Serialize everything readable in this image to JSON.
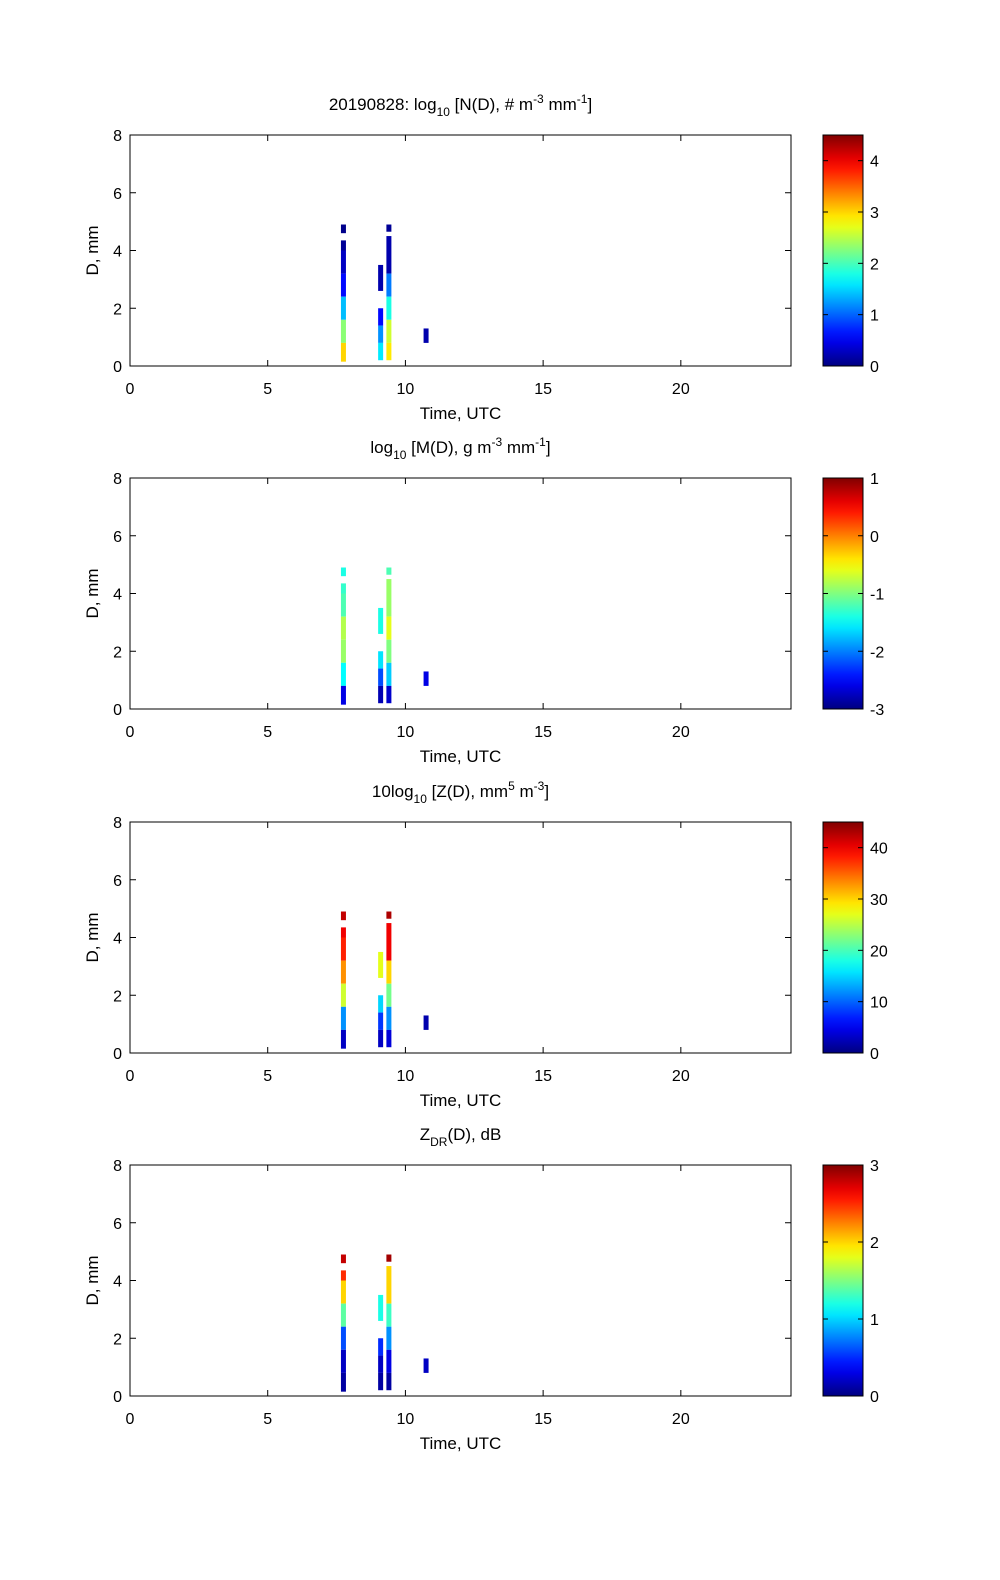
{
  "chart_data": [
    {
      "type": "heatmap",
      "title_parts": {
        "pre": "20190828: log",
        "sub": "10",
        "mid": " [N(D), # m",
        "sup1": "-3",
        "mid2": " mm",
        "sup2": "-1",
        "post": "]"
      },
      "xlabel": "Time, UTC",
      "ylabel": "D, mm",
      "xlim": [
        0,
        24
      ],
      "ylim": [
        0,
        8
      ],
      "xticks": [
        0,
        5,
        10,
        15,
        20
      ],
      "yticks": [
        0,
        2,
        4,
        6,
        8
      ],
      "colorbar": {
        "range": [
          0,
          4.5
        ],
        "ticks": [
          0,
          1,
          2,
          3,
          4
        ]
      },
      "cells": [
        {
          "t": 7.75,
          "d0": 4.6,
          "d1": 4.9,
          "v": 0.05
        },
        {
          "t": 7.75,
          "d0": 4.0,
          "d1": 4.35,
          "v": 0.1
        },
        {
          "t": 7.75,
          "d0": 3.2,
          "d1": 4.0,
          "v": 0.3
        },
        {
          "t": 7.75,
          "d0": 2.4,
          "d1": 3.2,
          "v": 0.6
        },
        {
          "t": 7.75,
          "d0": 1.6,
          "d1": 2.4,
          "v": 1.4
        },
        {
          "t": 7.75,
          "d0": 0.8,
          "d1": 1.6,
          "v": 2.3
        },
        {
          "t": 7.75,
          "d0": 0.15,
          "d1": 0.8,
          "v": 3.0
        },
        {
          "t": 9.1,
          "d0": 2.6,
          "d1": 3.5,
          "v": 0.2
        },
        {
          "t": 9.1,
          "d0": 1.4,
          "d1": 2.0,
          "v": 0.6
        },
        {
          "t": 9.1,
          "d0": 0.8,
          "d1": 1.4,
          "v": 1.2
        },
        {
          "t": 9.1,
          "d0": 0.2,
          "d1": 0.8,
          "v": 1.6
        },
        {
          "t": 9.4,
          "d0": 4.65,
          "d1": 4.9,
          "v": 0.1
        },
        {
          "t": 9.4,
          "d0": 3.2,
          "d1": 4.5,
          "v": 0.2
        },
        {
          "t": 9.4,
          "d0": 2.4,
          "d1": 3.2,
          "v": 1.1
        },
        {
          "t": 9.4,
          "d0": 1.6,
          "d1": 2.4,
          "v": 1.8
        },
        {
          "t": 9.4,
          "d0": 0.8,
          "d1": 1.6,
          "v": 2.6
        },
        {
          "t": 9.4,
          "d0": 0.2,
          "d1": 0.8,
          "v": 2.9
        },
        {
          "t": 10.75,
          "d0": 0.8,
          "d1": 1.3,
          "v": 0.2
        }
      ]
    },
    {
      "type": "heatmap",
      "title_parts": {
        "pre": "log",
        "sub": "10",
        "mid": " [M(D), g m",
        "sup1": "-3",
        "mid2": " mm",
        "sup2": "-1",
        "post": "]"
      },
      "xlabel": "Time, UTC",
      "ylabel": "D, mm",
      "xlim": [
        0,
        24
      ],
      "ylim": [
        0,
        8
      ],
      "xticks": [
        0,
        5,
        10,
        15,
        20
      ],
      "yticks": [
        0,
        2,
        4,
        6,
        8
      ],
      "colorbar": {
        "range": [
          -3,
          1
        ],
        "ticks": [
          -3,
          -2,
          -1,
          0,
          1
        ]
      },
      "cells": [
        {
          "t": 7.75,
          "d0": 4.6,
          "d1": 4.9,
          "v": -1.4
        },
        {
          "t": 7.75,
          "d0": 4.0,
          "d1": 4.35,
          "v": -1.3
        },
        {
          "t": 7.75,
          "d0": 3.2,
          "d1": 4.0,
          "v": -1.2
        },
        {
          "t": 7.75,
          "d0": 2.4,
          "d1": 3.2,
          "v": -0.8
        },
        {
          "t": 7.75,
          "d0": 1.6,
          "d1": 2.4,
          "v": -0.9
        },
        {
          "t": 7.75,
          "d0": 0.8,
          "d1": 1.6,
          "v": -1.5
        },
        {
          "t": 7.75,
          "d0": 0.15,
          "d1": 0.8,
          "v": -2.6
        },
        {
          "t": 9.1,
          "d0": 2.6,
          "d1": 3.5,
          "v": -1.4
        },
        {
          "t": 9.1,
          "d0": 1.4,
          "d1": 2.0,
          "v": -1.6
        },
        {
          "t": 9.1,
          "d0": 0.8,
          "d1": 1.4,
          "v": -2.2
        },
        {
          "t": 9.1,
          "d0": 0.2,
          "d1": 0.8,
          "v": -2.8
        },
        {
          "t": 9.4,
          "d0": 4.65,
          "d1": 4.9,
          "v": -1.2
        },
        {
          "t": 9.4,
          "d0": 3.2,
          "d1": 4.5,
          "v": -0.9
        },
        {
          "t": 9.4,
          "d0": 2.4,
          "d1": 3.2,
          "v": -0.6
        },
        {
          "t": 9.4,
          "d0": 1.6,
          "d1": 2.4,
          "v": -1.0
        },
        {
          "t": 9.4,
          "d0": 0.8,
          "d1": 1.6,
          "v": -1.7
        },
        {
          "t": 9.4,
          "d0": 0.2,
          "d1": 0.8,
          "v": -2.7
        },
        {
          "t": 10.75,
          "d0": 0.8,
          "d1": 1.3,
          "v": -2.6
        }
      ]
    },
    {
      "type": "heatmap",
      "title_parts": {
        "pre": "10log",
        "sub": "10",
        "mid": " [Z(D),  mm",
        "sup1": "5",
        "mid2": " m",
        "sup2": "-3",
        "post": "]"
      },
      "xlabel": "Time, UTC",
      "ylabel": "D, mm",
      "xlim": [
        0,
        24
      ],
      "ylim": [
        0,
        8
      ],
      "xticks": [
        0,
        5,
        10,
        15,
        20
      ],
      "yticks": [
        0,
        2,
        4,
        6,
        8
      ],
      "colorbar": {
        "range": [
          0,
          45
        ],
        "ticks": [
          0,
          10,
          20,
          30,
          40
        ]
      },
      "cells": [
        {
          "t": 7.75,
          "d0": 4.6,
          "d1": 4.9,
          "v": 42
        },
        {
          "t": 7.75,
          "d0": 4.0,
          "d1": 4.35,
          "v": 40
        },
        {
          "t": 7.75,
          "d0": 3.2,
          "d1": 4.0,
          "v": 38
        },
        {
          "t": 7.75,
          "d0": 2.4,
          "d1": 3.2,
          "v": 33
        },
        {
          "t": 7.75,
          "d0": 1.6,
          "d1": 2.4,
          "v": 26
        },
        {
          "t": 7.75,
          "d0": 0.8,
          "d1": 1.6,
          "v": 12
        },
        {
          "t": 7.75,
          "d0": 0.15,
          "d1": 0.8,
          "v": 3
        },
        {
          "t": 9.1,
          "d0": 2.6,
          "d1": 3.5,
          "v": 27
        },
        {
          "t": 9.1,
          "d0": 1.4,
          "d1": 2.0,
          "v": 15
        },
        {
          "t": 9.1,
          "d0": 0.8,
          "d1": 1.4,
          "v": 8
        },
        {
          "t": 9.1,
          "d0": 0.2,
          "d1": 0.8,
          "v": 3
        },
        {
          "t": 9.4,
          "d0": 4.65,
          "d1": 4.9,
          "v": 43
        },
        {
          "t": 9.4,
          "d0": 3.2,
          "d1": 4.5,
          "v": 40
        },
        {
          "t": 9.4,
          "d0": 2.4,
          "d1": 3.2,
          "v": 30
        },
        {
          "t": 9.4,
          "d0": 1.6,
          "d1": 2.4,
          "v": 22
        },
        {
          "t": 9.4,
          "d0": 0.8,
          "d1": 1.6,
          "v": 12
        },
        {
          "t": 9.4,
          "d0": 0.2,
          "d1": 0.8,
          "v": 4
        },
        {
          "t": 10.75,
          "d0": 0.8,
          "d1": 1.3,
          "v": 2
        }
      ]
    },
    {
      "type": "heatmap",
      "title_parts": {
        "pre": "Z",
        "sub": "DR",
        "mid": "(D), dB",
        "sup1": "",
        "mid2": "",
        "sup2": "",
        "post": ""
      },
      "xlabel": "Time, UTC",
      "ylabel": "D, mm",
      "xlim": [
        0,
        24
      ],
      "ylim": [
        0,
        8
      ],
      "xticks": [
        0,
        5,
        10,
        15,
        20
      ],
      "yticks": [
        0,
        2,
        4,
        6,
        8
      ],
      "colorbar": {
        "range": [
          0,
          3
        ],
        "ticks": [
          0,
          1,
          2,
          3
        ]
      },
      "cells": [
        {
          "t": 7.75,
          "d0": 4.6,
          "d1": 4.9,
          "v": 2.8
        },
        {
          "t": 7.75,
          "d0": 4.0,
          "d1": 4.35,
          "v": 2.5
        },
        {
          "t": 7.75,
          "d0": 3.2,
          "d1": 4.0,
          "v": 2.0
        },
        {
          "t": 7.75,
          "d0": 2.4,
          "d1": 3.2,
          "v": 1.4
        },
        {
          "t": 7.75,
          "d0": 1.6,
          "d1": 2.4,
          "v": 0.6
        },
        {
          "t": 7.75,
          "d0": 0.8,
          "d1": 1.6,
          "v": 0.2
        },
        {
          "t": 7.75,
          "d0": 0.15,
          "d1": 0.8,
          "v": 0.1
        },
        {
          "t": 9.1,
          "d0": 2.6,
          "d1": 3.5,
          "v": 1.2
        },
        {
          "t": 9.1,
          "d0": 1.4,
          "d1": 2.0,
          "v": 0.5
        },
        {
          "t": 9.1,
          "d0": 0.8,
          "d1": 1.4,
          "v": 0.2
        },
        {
          "t": 9.1,
          "d0": 0.2,
          "d1": 0.8,
          "v": 0.1
        },
        {
          "t": 9.4,
          "d0": 4.65,
          "d1": 4.9,
          "v": 2.9
        },
        {
          "t": 9.4,
          "d0": 3.2,
          "d1": 4.5,
          "v": 2.0
        },
        {
          "t": 9.4,
          "d0": 2.4,
          "d1": 3.2,
          "v": 1.3
        },
        {
          "t": 9.4,
          "d0": 1.6,
          "d1": 2.4,
          "v": 0.8
        },
        {
          "t": 9.4,
          "d0": 0.8,
          "d1": 1.6,
          "v": 0.3
        },
        {
          "t": 9.4,
          "d0": 0.2,
          "d1": 0.8,
          "v": 0.1
        },
        {
          "t": 10.75,
          "d0": 0.8,
          "d1": 1.3,
          "v": 0.2
        }
      ]
    }
  ]
}
